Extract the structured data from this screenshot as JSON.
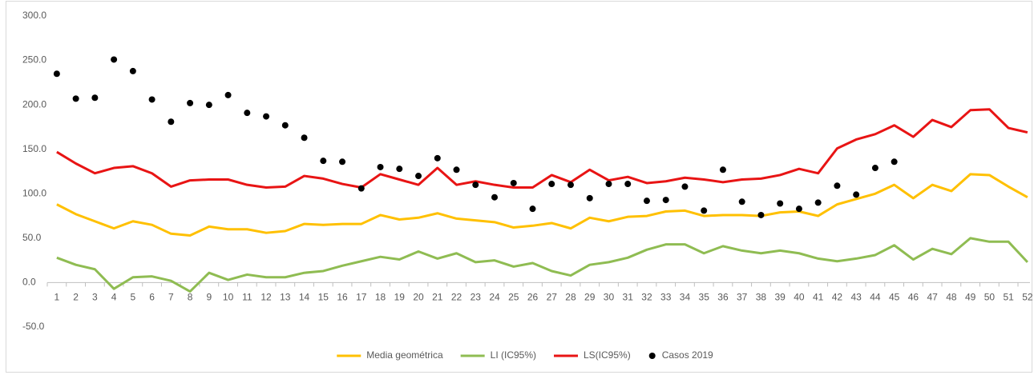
{
  "chart_data": {
    "type": "line",
    "categories": [
      "1",
      "2",
      "3",
      "4",
      "5",
      "6",
      "7",
      "8",
      "9",
      "10",
      "11",
      "12",
      "13",
      "14",
      "15",
      "16",
      "17",
      "18",
      "19",
      "20",
      "21",
      "22",
      "23",
      "24",
      "25",
      "26",
      "27",
      "28",
      "29",
      "30",
      "31",
      "32",
      "33",
      "34",
      "35",
      "36",
      "37",
      "38",
      "39",
      "40",
      "41",
      "42",
      "43",
      "44",
      "45",
      "46",
      "47",
      "48",
      "49",
      "50",
      "51",
      "52"
    ],
    "ylim": [
      -50,
      300
    ],
    "yticks": [
      {
        "value": -50,
        "label": "-50.0"
      },
      {
        "value": 0,
        "label": "0.0"
      },
      {
        "value": 50,
        "label": "50.0"
      },
      {
        "value": 100,
        "label": "100.0"
      },
      {
        "value": 150,
        "label": "150.0"
      },
      {
        "value": 200,
        "label": "200.0"
      },
      {
        "value": 250,
        "label": "250.0"
      },
      {
        "value": 300,
        "label": "300.0"
      }
    ],
    "grid": false,
    "legend": "bottom",
    "series": [
      {
        "name": "Media geométrica",
        "color": "#ffc000",
        "type": "line",
        "values": [
          88,
          77,
          69,
          61,
          69,
          65,
          55,
          53,
          63,
          60,
          60,
          56,
          58,
          66,
          65,
          66,
          66,
          76,
          71,
          73,
          78,
          72,
          70,
          68,
          62,
          64,
          67,
          61,
          73,
          69,
          74,
          75,
          80,
          81,
          75,
          76,
          76,
          75,
          79,
          80,
          75,
          88,
          94,
          100,
          110,
          95,
          110,
          103,
          122,
          121,
          108,
          96
        ]
      },
      {
        "name": "LI (IC95%)",
        "color": "#8fbc52",
        "type": "line",
        "values": [
          28,
          20,
          15,
          -7,
          6,
          7,
          2,
          -10,
          11,
          3,
          9,
          6,
          6,
          11,
          13,
          19,
          24,
          29,
          26,
          35,
          27,
          33,
          23,
          25,
          18,
          22,
          13,
          8,
          20,
          23,
          28,
          37,
          43,
          43,
          33,
          41,
          36,
          33,
          36,
          33,
          27,
          24,
          27,
          31,
          42,
          26,
          38,
          32,
          50,
          46,
          46,
          23
        ]
      },
      {
        "name": "LS(IC95%)",
        "color": "#e81414",
        "type": "line",
        "values": [
          147,
          134,
          123,
          129,
          131,
          123,
          108,
          115,
          116,
          116,
          110,
          107,
          108,
          120,
          117,
          111,
          107,
          122,
          116,
          110,
          129,
          110,
          114,
          110,
          107,
          107,
          121,
          113,
          127,
          115,
          119,
          112,
          114,
          118,
          116,
          113,
          116,
          117,
          121,
          128,
          123,
          151,
          161,
          167,
          177,
          164,
          183,
          175,
          194,
          195,
          174,
          169
        ]
      },
      {
        "name": "Casos 2019",
        "color": "#000000",
        "type": "scatter",
        "values": [
          235,
          207,
          208,
          251,
          238,
          206,
          181,
          202,
          200,
          211,
          191,
          187,
          177,
          163,
          137,
          136,
          106,
          130,
          128,
          120,
          140,
          127,
          110,
          96,
          112,
          83,
          111,
          110,
          95,
          111,
          111,
          92,
          93,
          108,
          81,
          127,
          91,
          76,
          89,
          83,
          90,
          109,
          99,
          129,
          136,
          null,
          null,
          null,
          null,
          null,
          null,
          null
        ]
      }
    ]
  }
}
